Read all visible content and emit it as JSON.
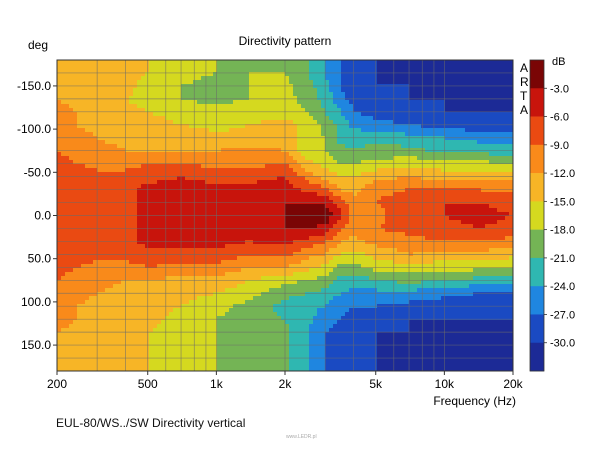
{
  "chart_data": {
    "type": "heatmap",
    "title": "Directivity pattern",
    "ylabel": "deg",
    "xlabel": "Frequency (Hz)",
    "x_scale": "log",
    "xlim": [
      200,
      20000
    ],
    "ylim": [
      -180,
      180
    ],
    "y_inverted": true,
    "x_ticks": [
      {
        "value": 200,
        "label": "200"
      },
      {
        "value": 500,
        "label": "500"
      },
      {
        "value": 1000,
        "label": "1k"
      },
      {
        "value": 2000,
        "label": "2k"
      },
      {
        "value": 5000,
        "label": "5k"
      },
      {
        "value": 10000,
        "label": "10k"
      },
      {
        "value": 20000,
        "label": "20k"
      }
    ],
    "y_ticks": [
      {
        "value": -150,
        "label": "-150.0"
      },
      {
        "value": -100,
        "label": "-100.0"
      },
      {
        "value": -50,
        "label": "-50.0"
      },
      {
        "value": 0,
        "label": "0.0"
      },
      {
        "value": 50,
        "label": "50.0"
      },
      {
        "value": 100,
        "label": "100.0"
      },
      {
        "value": 150,
        "label": "150.0"
      }
    ],
    "grid": true,
    "colorbar": {
      "unit": "dB",
      "ticks": [
        "-3.0",
        "-6.0",
        "-9.0",
        "-12.0",
        "-15.0",
        "-18.0",
        "-21.0",
        "-24.0",
        "-27.0",
        "-30.0"
      ],
      "band_colors": [
        "#7a0505",
        "#c8140c",
        "#ea4a12",
        "#f98a1a",
        "#f7b526",
        "#d5d91f",
        "#74b455",
        "#2fb7b1",
        "#1f86e0",
        "#1a4ac2",
        "#1c2a96"
      ]
    },
    "frequencies_hz": [
      200,
      300,
      400,
      500,
      700,
      1000,
      1400,
      2000,
      2500,
      3000,
      3500,
      4000,
      5000,
      7000,
      10000,
      14000,
      20000
    ],
    "angles_deg": [
      -180,
      -165,
      -150,
      -135,
      -120,
      -105,
      -90,
      -75,
      -60,
      -45,
      -30,
      -15,
      0,
      15,
      30,
      45,
      60,
      75,
      90,
      105,
      120,
      135,
      150,
      165,
      180
    ],
    "levels_db": [
      [
        -12,
        -13,
        -14,
        -15,
        -17,
        -18,
        -18,
        -18,
        -21,
        -24,
        -27,
        -29,
        -30,
        -30,
        -30,
        -30,
        -30
      ],
      [
        -12,
        -13,
        -14,
        -15,
        -17,
        -18,
        -18,
        -18,
        -21,
        -24,
        -27,
        -29,
        -30,
        -30,
        -30,
        -30,
        -30
      ],
      [
        -12,
        -13,
        -14,
        -16,
        -18,
        -19,
        -18,
        -17,
        -20,
        -23,
        -27,
        -29,
        -30,
        -30,
        -30,
        -30,
        -30
      ],
      [
        -12,
        -14,
        -15,
        -16,
        -18,
        -19,
        -18,
        -17,
        -19,
        -22,
        -26,
        -28,
        -29,
        -30,
        -30,
        -30,
        -30
      ],
      [
        -11,
        -13,
        -14,
        -15,
        -16,
        -17,
        -16,
        -16,
        -18,
        -21,
        -24,
        -27,
        -28,
        -29,
        -30,
        -30,
        -30
      ],
      [
        -11,
        -13,
        -14,
        -14,
        -15,
        -16,
        -15,
        -14,
        -16,
        -19,
        -22,
        -25,
        -26,
        -27,
        -28,
        -29,
        -29
      ],
      [
        -10,
        -12,
        -13,
        -13,
        -13,
        -14,
        -14,
        -14,
        -16,
        -18,
        -22,
        -22,
        -22,
        -23,
        -24,
        -25,
        -25
      ],
      [
        -9,
        -11,
        -12,
        -12,
        -12,
        -12,
        -11,
        -12,
        -17,
        -18,
        -20,
        -21,
        -20,
        -20,
        -22,
        -22,
        -23
      ],
      [
        -8,
        -10,
        -10,
        -9,
        -9,
        -10,
        -10,
        -9,
        -14,
        -16,
        -18,
        -18,
        -17,
        -16,
        -17,
        -17,
        -18
      ],
      [
        -7,
        -8,
        -8,
        -7,
        -6,
        -7,
        -7,
        -6,
        -10,
        -13,
        -15,
        -15,
        -13,
        -12,
        -13,
        -13,
        -13
      ],
      [
        -7,
        -8,
        -7,
        -5,
        -5,
        -5,
        -5,
        -4,
        -7,
        -8,
        -12,
        -13,
        -10,
        -9,
        -9,
        -9,
        -10
      ],
      [
        -7,
        -8,
        -7,
        -5,
        -4,
        -4,
        -4,
        -3,
        -3,
        -3,
        -8,
        -11,
        -9,
        -7,
        -6,
        -6,
        -7
      ],
      [
        -7,
        -8,
        -7,
        -5,
        -4,
        -4,
        -4,
        -3,
        -1,
        -1,
        -5,
        -10,
        -10,
        -7,
        -6,
        -5,
        -6
      ],
      [
        -7,
        -8,
        -7,
        -5,
        -4,
        -4,
        -4,
        -3,
        -3,
        -4,
        -8,
        -11,
        -9,
        -8,
        -7,
        -6,
        -7
      ],
      [
        -7,
        -8,
        -7,
        -5,
        -5,
        -5,
        -6,
        -5,
        -7,
        -9,
        -12,
        -13,
        -11,
        -10,
        -9,
        -9,
        -10
      ],
      [
        -7,
        -8,
        -8,
        -7,
        -7,
        -7,
        -9,
        -8,
        -11,
        -12,
        -15,
        -16,
        -14,
        -12,
        -13,
        -13,
        -14
      ],
      [
        -8,
        -10,
        -10,
        -9,
        -10,
        -10,
        -12,
        -12,
        -14,
        -16,
        -19,
        -19,
        -17,
        -16,
        -17,
        -17,
        -18
      ],
      [
        -9,
        -11,
        -12,
        -12,
        -13,
        -13,
        -15,
        -17,
        -18,
        -19,
        -22,
        -23,
        -21,
        -20,
        -21,
        -22,
        -22
      ],
      [
        -10,
        -12,
        -13,
        -13,
        -14,
        -15,
        -17,
        -20,
        -21,
        -22,
        -24,
        -25,
        -25,
        -25,
        -26,
        -27,
        -27
      ],
      [
        -11,
        -13,
        -14,
        -14,
        -15,
        -17,
        -19,
        -22,
        -23,
        -24,
        -26,
        -27,
        -27,
        -28,
        -29,
        -29,
        -30
      ],
      [
        -11,
        -13,
        -14,
        -14,
        -16,
        -18,
        -20,
        -21,
        -23,
        -26,
        -27,
        -28,
        -29,
        -30,
        -30,
        -30,
        -30
      ],
      [
        -12,
        -13,
        -14,
        -15,
        -16,
        -18,
        -20,
        -20,
        -24,
        -27,
        -28,
        -29,
        -30,
        -30,
        -30,
        -30,
        -30
      ],
      [
        -12,
        -13,
        -14,
        -15,
        -16,
        -18,
        -19,
        -20,
        -24,
        -27,
        -28,
        -29,
        -30,
        -30,
        -30,
        -30,
        -30
      ],
      [
        -12,
        -13,
        -14,
        -15,
        -17,
        -18,
        -19,
        -20,
        -24,
        -27,
        -28,
        -29,
        -30,
        -30,
        -30,
        -30,
        -30
      ],
      [
        -12,
        -13,
        -14,
        -15,
        -17,
        -18,
        -19,
        -20,
        -24,
        -27,
        -28,
        -29,
        -30,
        -30,
        -30,
        -30,
        -30
      ]
    ]
  },
  "watermark": "A R T A",
  "caption": "EUL-80/WS../SW  Directivity vertical",
  "credit": "www.LEDR.pl"
}
